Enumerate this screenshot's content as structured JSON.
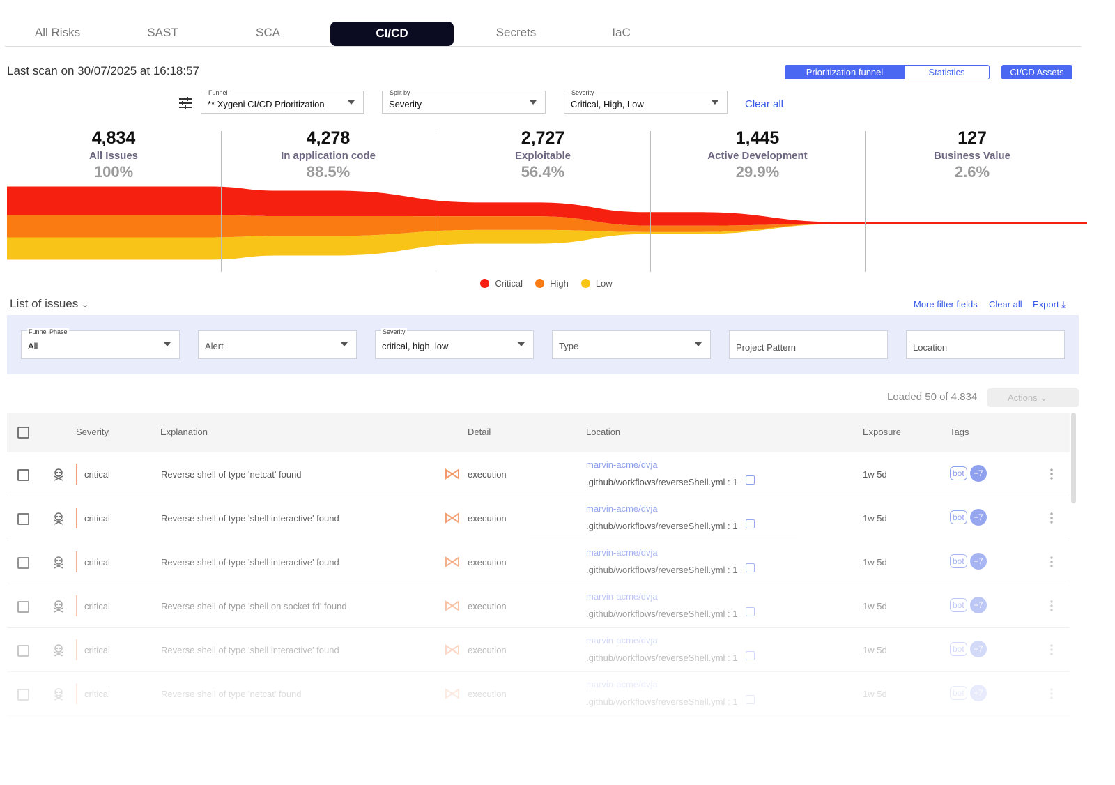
{
  "tabs": [
    "All Risks",
    "SAST",
    "SCA",
    "CI/CD",
    "Secrets",
    "IaC"
  ],
  "last_scan": "Last scan on 30/07/2025 at 16:18:57",
  "view_buttons": [
    "Prioritization funnel",
    "Statistics",
    "CI/CD Assets"
  ],
  "funnel_filters": [
    {
      "label": "Funnel",
      "value": "** Xygeni CI/CD Prioritization"
    },
    {
      "label": "Split by",
      "value": "Severity"
    },
    {
      "label": "Severity",
      "value": "Critical, High, Low"
    }
  ],
  "clear_all": "Clear all",
  "chart_data": {
    "type": "funnel",
    "stages": [
      {
        "count": {
          "value": 4834,
          "label": "4,834"
        },
        "name": "All Issues",
        "percent": {
          "value": 100,
          "label": "100%"
        }
      },
      {
        "count": {
          "value": 4278,
          "label": "4,278"
        },
        "name": "In application code",
        "percent": {
          "value": 88.5,
          "label": "88.5%"
        }
      },
      {
        "count": {
          "value": 2727,
          "label": "2,727"
        },
        "name": "Exploitable",
        "percent": {
          "value": 56.4,
          "label": "56.4%"
        }
      },
      {
        "count": {
          "value": 1445,
          "label": "1,445"
        },
        "name": "Active Development",
        "percent": {
          "value": 29.9,
          "label": "29.9%"
        }
      },
      {
        "count": {
          "value": 127,
          "label": "127"
        },
        "name": "Business Value",
        "percent": {
          "value": 2.6,
          "label": "2.6%"
        }
      }
    ],
    "series": [
      {
        "name": "Critical",
        "color": "#f5200f",
        "values": [
          1890,
          1680,
          910,
          890,
          110
        ]
      },
      {
        "name": "High",
        "color": "#f97b12",
        "values": [
          1470,
          1300,
          910,
          425,
          12
        ]
      },
      {
        "name": "Low",
        "color": "#f8c417",
        "values": [
          1474,
          1298,
          907,
          130,
          5
        ]
      }
    ]
  },
  "issues": {
    "title": "List of issues",
    "links": [
      "More filter fields",
      "Clear all",
      "Export"
    ],
    "filters": [
      {
        "label": "Funnel Phase",
        "value": "All",
        "dropdown": true
      },
      {
        "value": "Alert",
        "dropdown": true
      },
      {
        "label": "Severity",
        "value": "critical, high, low",
        "dropdown": true
      },
      {
        "value": "Type",
        "dropdown": true
      },
      {
        "value": "Project Pattern",
        "dropdown": false
      },
      {
        "value": "Location",
        "dropdown": false
      }
    ],
    "loaded": "Loaded 50 of 4.834",
    "actions": "Actions",
    "columns": [
      "Severity",
      "Explanation",
      "Detail",
      "Location",
      "Exposure",
      "Tags"
    ],
    "rows": [
      {
        "severity": "critical",
        "explanation": "Reverse shell of type 'netcat' found",
        "detail": "execution",
        "repo": "marvin-acme/dvja",
        "file": ".github/workflows/reverseShell.yml : 1",
        "exposure": "1w 5d",
        "tags": [
          "bot",
          "+7"
        ]
      },
      {
        "severity": "critical",
        "explanation": "Reverse shell of type 'shell interactive' found",
        "detail": "execution",
        "repo": "marvin-acme/dvja",
        "file": ".github/workflows/reverseShell.yml : 1",
        "exposure": "1w 5d",
        "tags": [
          "bot",
          "+7"
        ]
      },
      {
        "severity": "critical",
        "explanation": "Reverse shell of type 'shell interactive' found",
        "detail": "execution",
        "repo": "marvin-acme/dvja",
        "file": ".github/workflows/reverseShell.yml : 1",
        "exposure": "1w 5d",
        "tags": [
          "bot",
          "+7"
        ]
      },
      {
        "severity": "critical",
        "explanation": "Reverse shell of type 'shell on socket fd' found",
        "detail": "execution",
        "repo": "marvin-acme/dvja",
        "file": ".github/workflows/reverseShell.yml : 1",
        "exposure": "1w 5d",
        "tags": [
          "bot",
          "+7"
        ]
      },
      {
        "severity": "critical",
        "explanation": "Reverse shell of type 'shell interactive' found",
        "detail": "execution",
        "repo": "marvin-acme/dvja",
        "file": ".github/workflows/reverseShell.yml : 1",
        "exposure": "1w 5d",
        "tags": [
          "bot",
          "+7"
        ]
      },
      {
        "severity": "critical",
        "explanation": "Reverse shell of type 'netcat' found",
        "detail": "execution",
        "repo": "marvin-acme/dvja",
        "file": ".github/workflows/reverseShell.yml : 1",
        "exposure": "1w 5d",
        "tags": [
          "bot",
          "+7"
        ]
      }
    ]
  }
}
